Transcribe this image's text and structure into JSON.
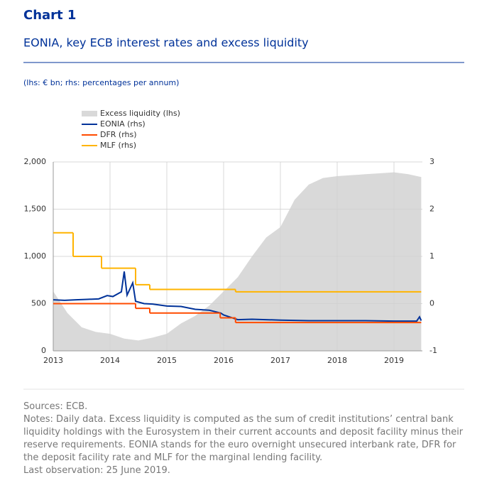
{
  "chart_data": {
    "type": "line",
    "title": "Chart 1",
    "subtitle": "EONIA, key ECB interest rates and excess liquidity",
    "unit_note": "(lhs: € bn; rhs: percentages per annum)",
    "notes": [
      "Sources: ECB.",
      "Notes: Daily data. Excess liquidity is computed as the sum of credit institutions’ central bank liquidity holdings with the Eurosystem in their current accounts and deposit facility minus their reserve requirements. EONIA stands for the euro overnight unsecured interbank rate, DFR for the deposit facility rate and MLF for the marginal lending facility.",
      "Last observation: 25 June 2019."
    ],
    "xlim": [
      2013,
      2019.5
    ],
    "xticks": [
      2013,
      2014,
      2015,
      2016,
      2017,
      2018,
      2019
    ],
    "ylim": [
      0,
      2000
    ],
    "yticks": [
      0,
      500,
      {
        "value": 1000,
        "label": "1,000"
      },
      {
        "value": 1500,
        "label": "1,500"
      },
      {
        "value": 2000,
        "label": "2,000"
      }
    ],
    "y2lim": [
      -1,
      3
    ],
    "y2ticks": [
      -1,
      0,
      1,
      2,
      3
    ],
    "grid": true,
    "series": [
      {
        "name": "Excess liquidity (lhs)",
        "color": "#d9d9d9",
        "style": "area",
        "x": [
          2013,
          2013.25,
          2013.5,
          2013.75,
          2014,
          2014.25,
          2014.5,
          2014.75,
          2015,
          2015.25,
          2015.5,
          2015.75,
          2016,
          2016.25,
          2016.5,
          2016.75,
          2017,
          2017.25,
          2017.5,
          2017.75,
          2018,
          2018.25,
          2018.5,
          2018.75,
          2019,
          2019.25,
          2019.48
        ],
        "values": [
          630,
          400,
          250,
          200,
          180,
          130,
          110,
          140,
          180,
          290,
          370,
          480,
          630,
          780,
          1000,
          1200,
          1310,
          1600,
          1760,
          1830,
          1850,
          1860,
          1870,
          1880,
          1890,
          1870,
          1840
        ]
      },
      {
        "name": "EONIA (rhs)",
        "color": "#003299",
        "style": "line",
        "axis": "y2",
        "x": [
          2013,
          2013.2,
          2013.4,
          2013.6,
          2013.8,
          2013.95,
          2014.05,
          2014.2,
          2014.25,
          2014.3,
          2014.4,
          2014.45,
          2014.6,
          2014.75,
          2015,
          2015.25,
          2015.5,
          2015.75,
          2015.95,
          2016,
          2016.25,
          2016.5,
          2017,
          2017.5,
          2018,
          2018.5,
          2019,
          2019.4,
          2019.45,
          2019.48
        ],
        "values": [
          0.08,
          0.07,
          0.08,
          0.09,
          0.1,
          0.17,
          0.15,
          0.25,
          0.68,
          0.18,
          0.44,
          0.05,
          0.0,
          -0.01,
          -0.05,
          -0.06,
          -0.12,
          -0.14,
          -0.2,
          -0.24,
          -0.34,
          -0.33,
          -0.35,
          -0.36,
          -0.36,
          -0.36,
          -0.37,
          -0.37,
          -0.28,
          -0.36
        ]
      },
      {
        "name": "DFR (rhs)",
        "color": "#ff4b00",
        "style": "step",
        "axis": "y2",
        "x": [
          2013,
          2014.45,
          2014.7,
          2015.94,
          2016.21,
          2019.48
        ],
        "values": [
          0,
          -0.1,
          -0.2,
          -0.3,
          -0.4,
          -0.4
        ]
      },
      {
        "name": "MLF (rhs)",
        "color": "#ffb400",
        "style": "step",
        "axis": "y2",
        "x": [
          2013,
          2013.35,
          2013.85,
          2014.45,
          2014.7,
          2016.21,
          2019.48
        ],
        "values": [
          1.5,
          1.0,
          0.75,
          0.4,
          0.3,
          0.25,
          0.25
        ]
      }
    ]
  }
}
